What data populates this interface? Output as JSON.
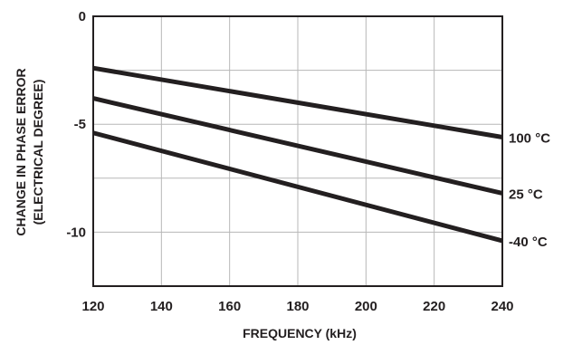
{
  "chart_data": {
    "type": "line",
    "title": "",
    "xlabel": "FREQUENCY (kHz)",
    "ylabel_lines": [
      "CHANGE IN PHASE ERROR",
      "(ELECTRICAL DEGREE)"
    ],
    "xlim": [
      120,
      240
    ],
    "ylim": [
      -12.5,
      0
    ],
    "xticks": [
      120,
      140,
      160,
      180,
      200,
      220,
      240
    ],
    "xtick_labels": [
      "120",
      "140",
      "160",
      "180",
      "200",
      "220",
      "240"
    ],
    "yticks": [
      0,
      -5,
      -10
    ],
    "ytick_labels": [
      "0",
      "-5",
      "-10"
    ],
    "ygrid": [
      0,
      -2.5,
      -5,
      -7.5,
      -10,
      -12.5
    ],
    "grid": true,
    "legend": "inline labels at right end of each line",
    "line_color": "#231f20",
    "grid_color": "#b7b7b7",
    "series": [
      {
        "name": "100 °C",
        "x": [
          120,
          240
        ],
        "y": [
          -2.4,
          -5.6
        ]
      },
      {
        "name": "25 °C",
        "x": [
          120,
          240
        ],
        "y": [
          -3.8,
          -8.2
        ]
      },
      {
        "name": "-40 °C",
        "x": [
          120,
          240
        ],
        "y": [
          -5.4,
          -10.4
        ]
      }
    ]
  }
}
